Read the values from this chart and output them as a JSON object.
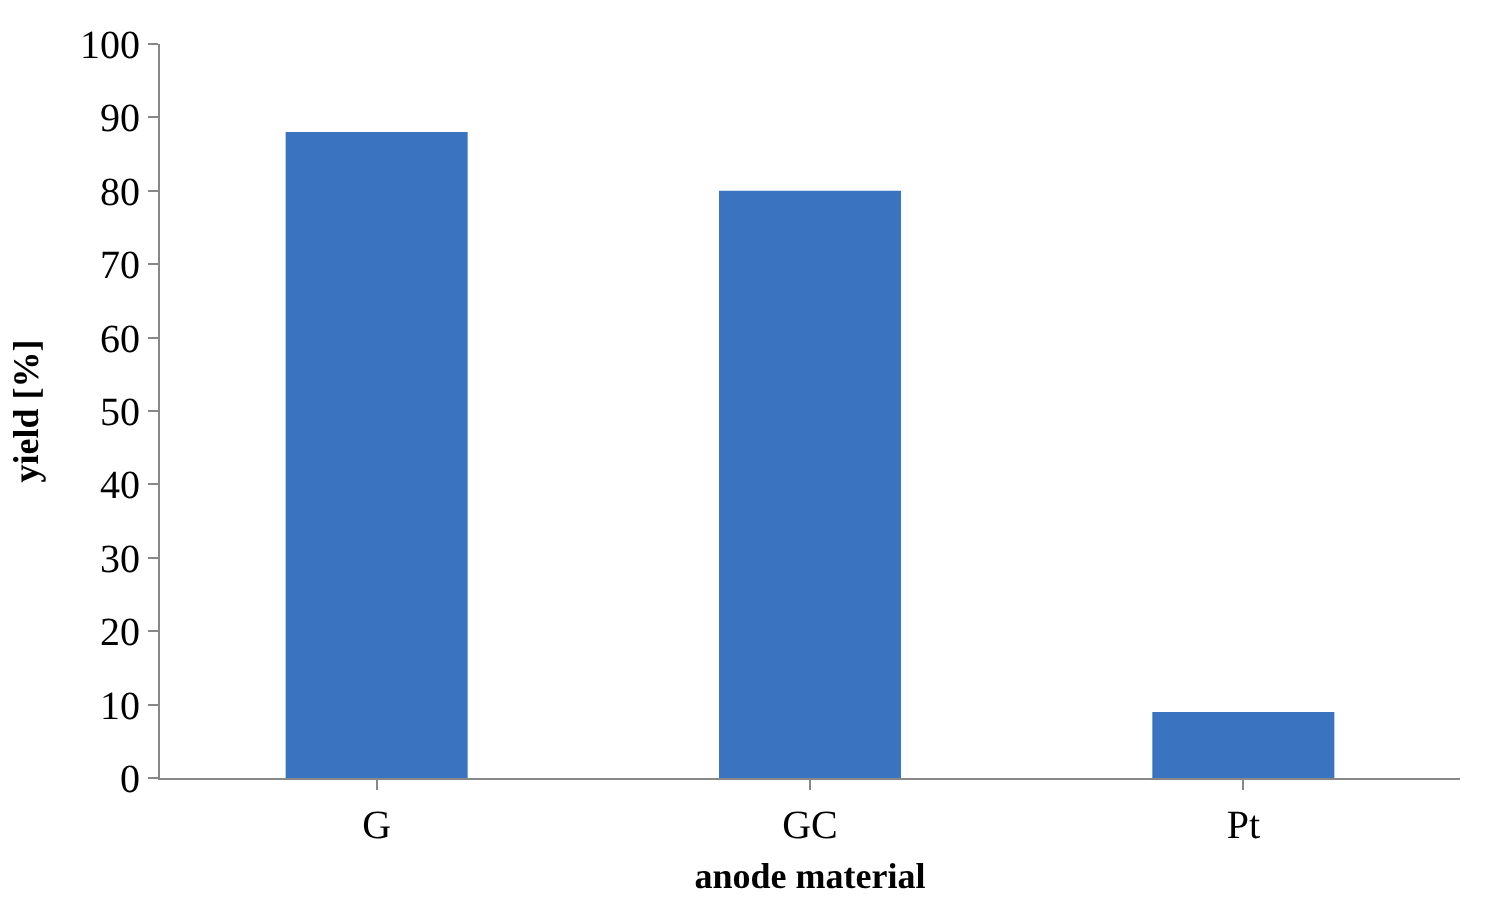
{
  "chart_data": {
    "type": "bar",
    "xlabel": "anode material",
    "ylabel": "yield [%]",
    "categories": [
      "G",
      "GC",
      "Pt"
    ],
    "values": [
      88,
      80,
      9
    ],
    "color": "#3a73c0",
    "ylim": [
      0,
      100
    ],
    "yticks": [
      0,
      10,
      20,
      30,
      40,
      50,
      60,
      70,
      80,
      90,
      100
    ]
  }
}
